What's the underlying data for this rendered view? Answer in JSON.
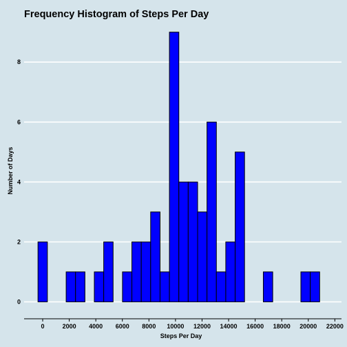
{
  "chart_data": {
    "type": "bar",
    "title": "Frequency Histogram of Steps Per Day",
    "xlabel": "Steps Per Day",
    "ylabel": "Number of Days",
    "bin_width": 707,
    "bins": [
      {
        "start": -354,
        "count": 2
      },
      {
        "start": 353,
        "count": 0
      },
      {
        "start": 1060,
        "count": 0
      },
      {
        "start": 1767,
        "count": 1
      },
      {
        "start": 2474,
        "count": 1
      },
      {
        "start": 3181,
        "count": 0
      },
      {
        "start": 3888,
        "count": 1
      },
      {
        "start": 4595,
        "count": 2
      },
      {
        "start": 5302,
        "count": 0
      },
      {
        "start": 6009,
        "count": 1
      },
      {
        "start": 6716,
        "count": 2
      },
      {
        "start": 7423,
        "count": 2
      },
      {
        "start": 8130,
        "count": 3
      },
      {
        "start": 8837,
        "count": 1
      },
      {
        "start": 9544,
        "count": 9
      },
      {
        "start": 10251,
        "count": 4
      },
      {
        "start": 10958,
        "count": 4
      },
      {
        "start": 11665,
        "count": 3
      },
      {
        "start": 12372,
        "count": 6
      },
      {
        "start": 13079,
        "count": 1
      },
      {
        "start": 13786,
        "count": 2
      },
      {
        "start": 14493,
        "count": 5
      },
      {
        "start": 15200,
        "count": 0
      },
      {
        "start": 15907,
        "count": 0
      },
      {
        "start": 16614,
        "count": 1
      },
      {
        "start": 17321,
        "count": 0
      },
      {
        "start": 18028,
        "count": 0
      },
      {
        "start": 18735,
        "count": 0
      },
      {
        "start": 19442,
        "count": 1
      },
      {
        "start": 20149,
        "count": 1
      }
    ],
    "xlim": [
      -1400,
      22500
    ],
    "ylim": [
      -0.45,
      9.2
    ],
    "x_ticks": [
      0,
      2000,
      4000,
      6000,
      8000,
      10000,
      12000,
      14000,
      16000,
      18000,
      20000,
      22000
    ],
    "y_ticks": [
      0,
      2,
      4,
      6,
      8
    ],
    "grid": "horizontal",
    "legend": "none",
    "colors": {
      "background": "#d5e4eb",
      "bar_fill": "#0000ff",
      "bar_edge": "#000000",
      "grid": "#ffffff"
    }
  }
}
